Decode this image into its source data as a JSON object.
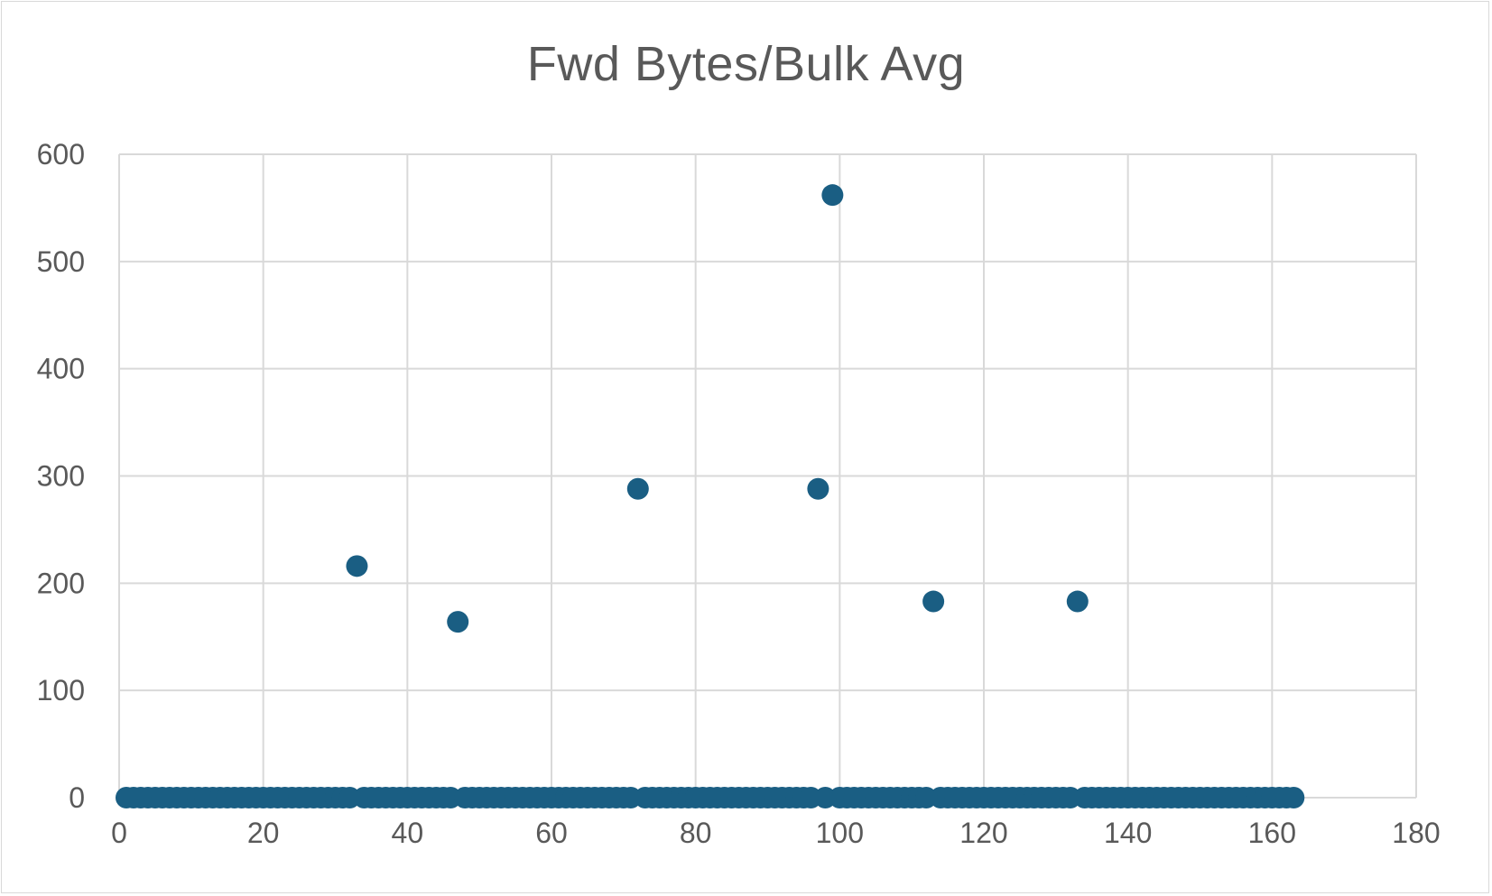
{
  "chart_data": {
    "type": "scatter",
    "title": "Fwd Bytes/Bulk Avg",
    "xlabel": "",
    "ylabel": "",
    "xlim": [
      0,
      180
    ],
    "ylim": [
      0,
      600
    ],
    "xticks": [
      0,
      20,
      40,
      60,
      80,
      100,
      120,
      140,
      160,
      180
    ],
    "yticks": [
      0,
      100,
      200,
      300,
      400,
      500,
      600
    ],
    "grid": true,
    "legend": "none",
    "marker_color": "#1a5e83",
    "points": [
      [
        1,
        0
      ],
      [
        2,
        0
      ],
      [
        3,
        0
      ],
      [
        4,
        0
      ],
      [
        5,
        0
      ],
      [
        6,
        0
      ],
      [
        7,
        0
      ],
      [
        8,
        0
      ],
      [
        9,
        0
      ],
      [
        10,
        0
      ],
      [
        11,
        0
      ],
      [
        12,
        0
      ],
      [
        13,
        0
      ],
      [
        14,
        0
      ],
      [
        15,
        0
      ],
      [
        16,
        0
      ],
      [
        17,
        0
      ],
      [
        18,
        0
      ],
      [
        19,
        0
      ],
      [
        20,
        0
      ],
      [
        21,
        0
      ],
      [
        22,
        0
      ],
      [
        23,
        0
      ],
      [
        24,
        0
      ],
      [
        25,
        0
      ],
      [
        26,
        0
      ],
      [
        27,
        0
      ],
      [
        28,
        0
      ],
      [
        29,
        0
      ],
      [
        30,
        0
      ],
      [
        31,
        0
      ],
      [
        32,
        0
      ],
      [
        33,
        216
      ],
      [
        34,
        0
      ],
      [
        35,
        0
      ],
      [
        36,
        0
      ],
      [
        37,
        0
      ],
      [
        38,
        0
      ],
      [
        39,
        0
      ],
      [
        40,
        0
      ],
      [
        41,
        0
      ],
      [
        42,
        0
      ],
      [
        43,
        0
      ],
      [
        44,
        0
      ],
      [
        45,
        0
      ],
      [
        46,
        0
      ],
      [
        47,
        164
      ],
      [
        48,
        0
      ],
      [
        49,
        0
      ],
      [
        50,
        0
      ],
      [
        51,
        0
      ],
      [
        52,
        0
      ],
      [
        53,
        0
      ],
      [
        54,
        0
      ],
      [
        55,
        0
      ],
      [
        56,
        0
      ],
      [
        57,
        0
      ],
      [
        58,
        0
      ],
      [
        59,
        0
      ],
      [
        60,
        0
      ],
      [
        61,
        0
      ],
      [
        62,
        0
      ],
      [
        63,
        0
      ],
      [
        64,
        0
      ],
      [
        65,
        0
      ],
      [
        66,
        0
      ],
      [
        67,
        0
      ],
      [
        68,
        0
      ],
      [
        69,
        0
      ],
      [
        70,
        0
      ],
      [
        71,
        0
      ],
      [
        72,
        288
      ],
      [
        73,
        0
      ],
      [
        74,
        0
      ],
      [
        75,
        0
      ],
      [
        76,
        0
      ],
      [
        77,
        0
      ],
      [
        78,
        0
      ],
      [
        79,
        0
      ],
      [
        80,
        0
      ],
      [
        81,
        0
      ],
      [
        82,
        0
      ],
      [
        83,
        0
      ],
      [
        84,
        0
      ],
      [
        85,
        0
      ],
      [
        86,
        0
      ],
      [
        87,
        0
      ],
      [
        88,
        0
      ],
      [
        89,
        0
      ],
      [
        90,
        0
      ],
      [
        91,
        0
      ],
      [
        92,
        0
      ],
      [
        93,
        0
      ],
      [
        94,
        0
      ],
      [
        95,
        0
      ],
      [
        96,
        0
      ],
      [
        97,
        288
      ],
      [
        98,
        0
      ],
      [
        99,
        562
      ],
      [
        100,
        0
      ],
      [
        101,
        0
      ],
      [
        102,
        0
      ],
      [
        103,
        0
      ],
      [
        104,
        0
      ],
      [
        105,
        0
      ],
      [
        106,
        0
      ],
      [
        107,
        0
      ],
      [
        108,
        0
      ],
      [
        109,
        0
      ],
      [
        110,
        0
      ],
      [
        111,
        0
      ],
      [
        112,
        0
      ],
      [
        113,
        183
      ],
      [
        114,
        0
      ],
      [
        115,
        0
      ],
      [
        116,
        0
      ],
      [
        117,
        0
      ],
      [
        118,
        0
      ],
      [
        119,
        0
      ],
      [
        120,
        0
      ],
      [
        121,
        0
      ],
      [
        122,
        0
      ],
      [
        123,
        0
      ],
      [
        124,
        0
      ],
      [
        125,
        0
      ],
      [
        126,
        0
      ],
      [
        127,
        0
      ],
      [
        128,
        0
      ],
      [
        129,
        0
      ],
      [
        130,
        0
      ],
      [
        131,
        0
      ],
      [
        132,
        0
      ],
      [
        133,
        183
      ],
      [
        134,
        0
      ],
      [
        135,
        0
      ],
      [
        136,
        0
      ],
      [
        137,
        0
      ],
      [
        138,
        0
      ],
      [
        139,
        0
      ],
      [
        140,
        0
      ],
      [
        141,
        0
      ],
      [
        142,
        0
      ],
      [
        143,
        0
      ],
      [
        144,
        0
      ],
      [
        145,
        0
      ],
      [
        146,
        0
      ],
      [
        147,
        0
      ],
      [
        148,
        0
      ],
      [
        149,
        0
      ],
      [
        150,
        0
      ],
      [
        151,
        0
      ],
      [
        152,
        0
      ],
      [
        153,
        0
      ],
      [
        154,
        0
      ],
      [
        155,
        0
      ],
      [
        156,
        0
      ],
      [
        157,
        0
      ],
      [
        158,
        0
      ],
      [
        159,
        0
      ],
      [
        160,
        0
      ],
      [
        161,
        0
      ],
      [
        162,
        0
      ],
      [
        163,
        0
      ]
    ]
  }
}
